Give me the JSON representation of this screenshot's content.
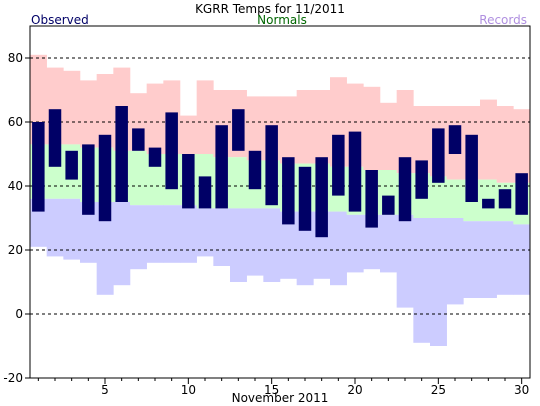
{
  "chart_data": {
    "type": "bar",
    "title": "KGRR Temps for 11/2011",
    "legend": [
      {
        "name": "Observed",
        "color": "#000066"
      },
      {
        "name": "Normals",
        "color": "#006600"
      },
      {
        "name": "Records",
        "color": "#b090e0"
      }
    ],
    "xlabel": "November 2011",
    "ylabel": "",
    "xlim": [
      0.5,
      30.5
    ],
    "ylim": [
      -20,
      90
    ],
    "x_ticks": [
      5,
      10,
      15,
      20,
      25,
      30
    ],
    "y_ticks": [
      -20,
      0,
      20,
      40,
      60,
      80
    ],
    "gridlines_y": [
      0,
      20,
      40,
      60,
      80
    ],
    "days": [
      1,
      2,
      3,
      4,
      5,
      6,
      7,
      8,
      9,
      10,
      11,
      12,
      13,
      14,
      15,
      16,
      17,
      18,
      19,
      20,
      21,
      22,
      23,
      24,
      25,
      26,
      27,
      28,
      29,
      30
    ],
    "observed_high": [
      60,
      64,
      51,
      53,
      56,
      65,
      58,
      52,
      63,
      50,
      43,
      59,
      64,
      51,
      59,
      49,
      46,
      49,
      56,
      57,
      45,
      37,
      49,
      48,
      58,
      59,
      56,
      36,
      39,
      44
    ],
    "observed_low": [
      32,
      46,
      42,
      31,
      29,
      35,
      51,
      46,
      39,
      33,
      33,
      33,
      51,
      39,
      34,
      28,
      26,
      24,
      37,
      32,
      27,
      31,
      29,
      36,
      41,
      50,
      35,
      33,
      33,
      31
    ],
    "normal_high": [
      53,
      53,
      53,
      52,
      52,
      51,
      51,
      50,
      50,
      50,
      50,
      49,
      49,
      48,
      48,
      47,
      47,
      47,
      46,
      46,
      45,
      45,
      44,
      44,
      43,
      42,
      42,
      42,
      41,
      41
    ],
    "normal_low": [
      36,
      36,
      36,
      35,
      35,
      35,
      34,
      34,
      34,
      34,
      33,
      33,
      33,
      33,
      33,
      32,
      32,
      32,
      32,
      31,
      31,
      31,
      31,
      30,
      30,
      30,
      29,
      29,
      29,
      28
    ],
    "record_high": [
      81,
      77,
      76,
      73,
      75,
      77,
      69,
      72,
      73,
      62,
      73,
      70,
      70,
      68,
      68,
      68,
      70,
      70,
      74,
      72,
      71,
      66,
      70,
      65,
      65,
      65,
      65,
      67,
      65,
      64
    ],
    "record_low": [
      21,
      18,
      17,
      16,
      6,
      9,
      14,
      16,
      16,
      16,
      18,
      15,
      10,
      12,
      10,
      11,
      9,
      11,
      9,
      13,
      14,
      13,
      2,
      -9,
      -10,
      3,
      5,
      5,
      6,
      6
    ]
  }
}
